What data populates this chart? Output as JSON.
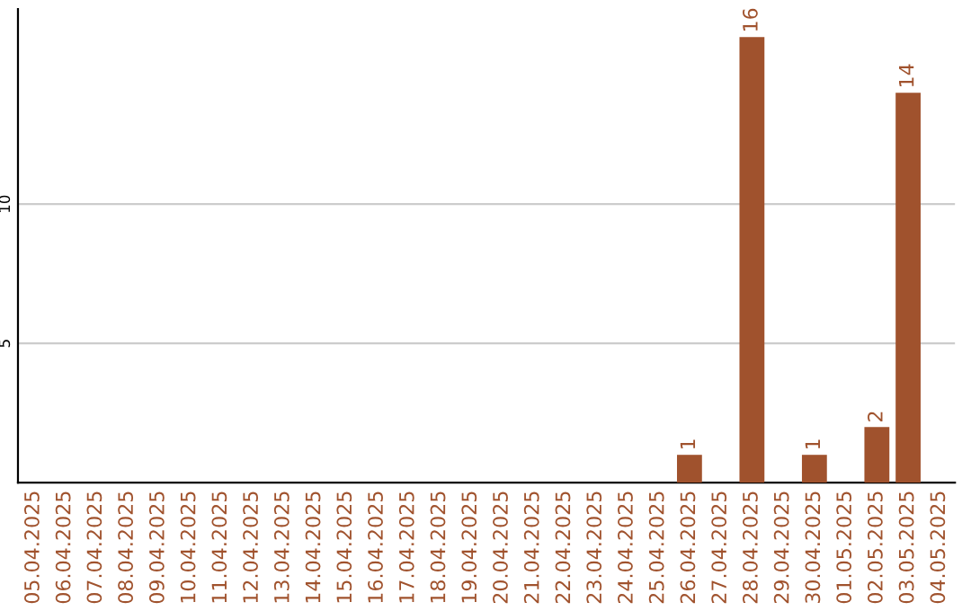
{
  "chart_data": {
    "type": "bar",
    "categories": [
      "05.04.2025",
      "06.04.2025",
      "07.04.2025",
      "08.04.2025",
      "09.04.2025",
      "10.04.2025",
      "11.04.2025",
      "12.04.2025",
      "13.04.2025",
      "14.04.2025",
      "15.04.2025",
      "16.04.2025",
      "17.04.2025",
      "18.04.2025",
      "19.04.2025",
      "20.04.2025",
      "21.04.2025",
      "22.04.2025",
      "23.04.2025",
      "24.04.2025",
      "25.04.2025",
      "26.04.2025",
      "27.04.2025",
      "28.04.2025",
      "29.04.2025",
      "30.04.2025",
      "01.05.2025",
      "02.05.2025",
      "03.05.2025",
      "04.05.2025"
    ],
    "values": [
      null,
      null,
      null,
      null,
      null,
      null,
      null,
      null,
      null,
      null,
      null,
      null,
      null,
      null,
      null,
      null,
      null,
      null,
      null,
      null,
      null,
      1,
      null,
      16,
      null,
      1,
      null,
      2,
      14,
      null
    ],
    "color": "#a0522d",
    "ylim": [
      0,
      17
    ],
    "yticks": [
      5,
      10
    ],
    "grid": "y",
    "data_labels": true
  }
}
